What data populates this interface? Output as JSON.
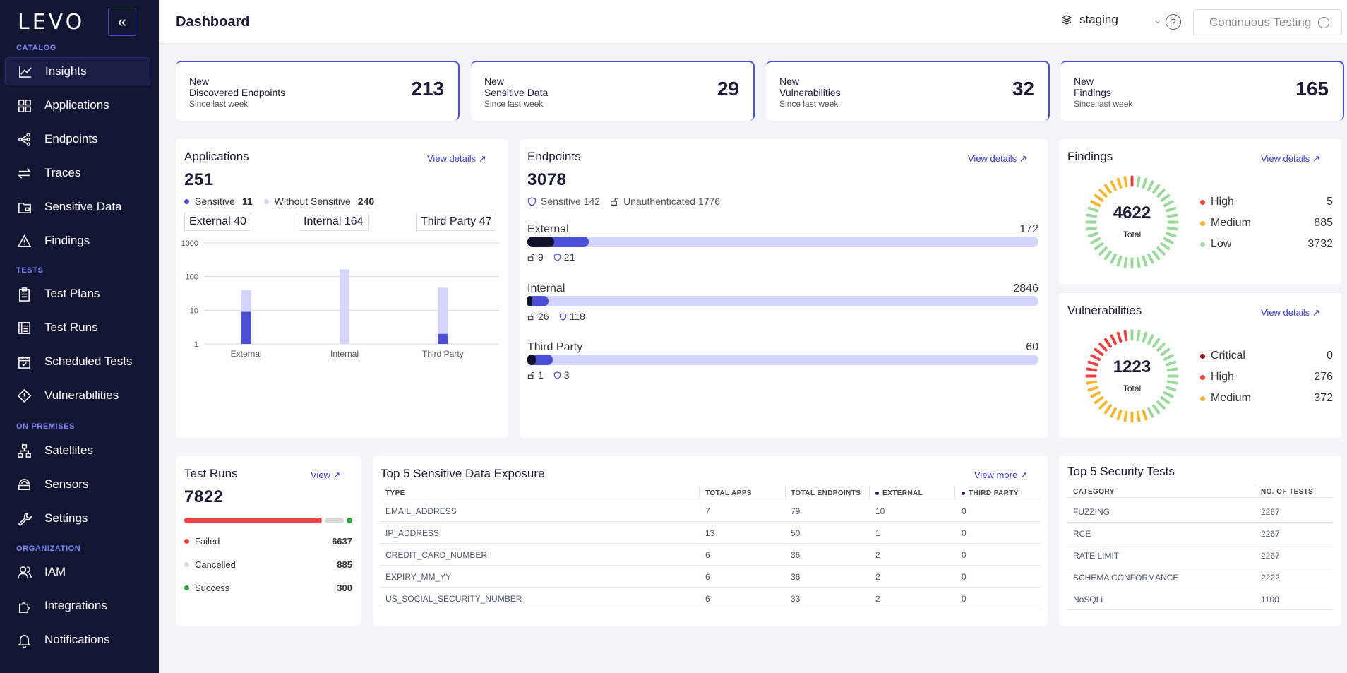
{
  "sidebar": {
    "logo": "LEVO",
    "collapse_icon": "«",
    "sections": {
      "catalog": "CATALOG",
      "tests": "TESTS",
      "on_premises": "ON PREMISES",
      "organization": "ORGANIZATION"
    },
    "items": [
      {
        "label": "Insights",
        "icon": "chart-line-icon"
      },
      {
        "label": "Applications",
        "icon": "grid-icon"
      },
      {
        "label": "Endpoints",
        "icon": "share-nodes-icon"
      },
      {
        "label": "Traces",
        "icon": "arrows-icon"
      },
      {
        "label": "Sensitive Data",
        "icon": "folder-lock-icon"
      },
      {
        "label": "Findings",
        "icon": "warning-icon"
      },
      {
        "label": "Test Plans",
        "icon": "clipboard-icon"
      },
      {
        "label": "Test Runs",
        "icon": "list-icon"
      },
      {
        "label": "Scheduled Tests",
        "icon": "calendar-icon"
      },
      {
        "label": "Vulnerabilities",
        "icon": "diamond-alert-icon"
      },
      {
        "label": "Satellites",
        "icon": "network-icon"
      },
      {
        "label": "Sensors",
        "icon": "sensor-icon"
      },
      {
        "label": "Settings",
        "icon": "wrench-icon"
      },
      {
        "label": "IAM",
        "icon": "users-icon"
      },
      {
        "label": "Integrations",
        "icon": "puzzle-icon"
      },
      {
        "label": "Notifications",
        "icon": "bell-icon"
      }
    ]
  },
  "header": {
    "title": "Dashboard",
    "environment": "staging",
    "help": "?",
    "continuous_testing": "Continuous Testing"
  },
  "stats": [
    {
      "line1": "New",
      "line2": "Discovered Endpoints",
      "line3": "Since last week",
      "value": "213"
    },
    {
      "line1": "New",
      "line2": "Sensitive Data",
      "line3": "Since last week",
      "value": "29"
    },
    {
      "line1": "New",
      "line2": "Vulnerabilities",
      "line3": "Since last week",
      "value": "32"
    },
    {
      "line1": "New",
      "line2": "Findings",
      "line3": "Since last week",
      "value": "165"
    }
  ],
  "applications": {
    "title": "Applications",
    "view": "View details ↗",
    "total": "251",
    "sensitive_label": "Sensitive",
    "sensitive_value": "11",
    "without_label": "Without Sensitive",
    "without_value": "240",
    "external": "External 40",
    "internal": "Internal 164",
    "third_party": "Third Party 47"
  },
  "chart_data": {
    "type": "bar",
    "stacked": true,
    "log_scale": true,
    "categories": [
      "External",
      "Internal",
      "Third Party"
    ],
    "series": [
      {
        "name": "Sensitive",
        "values": [
          9,
          0,
          2
        ],
        "color": "#4b4fd6"
      },
      {
        "name": "Without Sensitive",
        "values": [
          31,
          164,
          45
        ],
        "color": "#d4d5fb"
      }
    ],
    "yticks": [
      "1",
      "10",
      "100",
      "1000"
    ],
    "ylim": [
      1,
      1000
    ],
    "grid": true
  },
  "endpoints": {
    "title": "Endpoints",
    "view": "View details ↗",
    "total": "3078",
    "sensitive": "Sensitive 142",
    "unauthenticated": "Unauthenticated 1776",
    "rows": [
      {
        "label": "External",
        "total": "172",
        "unauth": "9",
        "sensitive": "21",
        "fill_fraction": 0.12,
        "dark_fraction": 0.052
      },
      {
        "label": "Internal",
        "total": "2846",
        "unauth": "26",
        "sensitive": "118",
        "fill_fraction": 0.042,
        "dark_fraction": 0.009
      },
      {
        "label": "Third Party",
        "total": "60",
        "unauth": "1",
        "sensitive": "3",
        "fill_fraction": 0.05,
        "dark_fraction": 0.017
      }
    ]
  },
  "findings": {
    "title": "Findings",
    "view": "View details ↗",
    "total": "4622",
    "total_label": "Total",
    "rows": [
      {
        "label": "High",
        "value": "5",
        "color": "#e8423f"
      },
      {
        "label": "Medium",
        "value": "885",
        "color": "#f5b731"
      },
      {
        "label": "Low",
        "value": "3732",
        "color": "#9bd89b"
      }
    ]
  },
  "vulnerabilities": {
    "title": "Vulnerabilities",
    "view": "View details ↗",
    "total": "1223",
    "total_label": "Total",
    "rows": [
      {
        "label": "Critical",
        "value": "0",
        "color": "#8b0e10"
      },
      {
        "label": "High",
        "value": "276",
        "color": "#e8423f"
      },
      {
        "label": "Medium",
        "value": "372",
        "color": "#f5b731"
      }
    ]
  },
  "test_runs": {
    "title": "Test Runs",
    "view": "View ↗",
    "total": "7822",
    "rows": [
      {
        "label": "Failed",
        "value": "6637",
        "color": "#ef4444"
      },
      {
        "label": "Cancelled",
        "value": "885",
        "color": "#d9d9d9"
      },
      {
        "label": "Success",
        "value": "300",
        "color": "#22a63a"
      }
    ]
  },
  "sensitive_exposure": {
    "title": "Top 5 Sensitive Data Exposure",
    "view": "View more ↗",
    "headers": [
      "TYPE",
      "TOTAL APPS",
      "TOTAL ENDPOINTS",
      "EXTERNAL",
      "THIRD PARTY"
    ],
    "rows": [
      [
        "EMAIL_ADDRESS",
        "7",
        "79",
        "10",
        "0"
      ],
      [
        "IP_ADDRESS",
        "13",
        "50",
        "1",
        "0"
      ],
      [
        "CREDIT_CARD_NUMBER",
        "6",
        "36",
        "2",
        "0"
      ],
      [
        "EXPIRY_MM_YY",
        "6",
        "36",
        "2",
        "0"
      ],
      [
        "US_SOCIAL_SECURITY_NUMBER",
        "6",
        "33",
        "2",
        "0"
      ]
    ]
  },
  "security_tests": {
    "title": "Top 5 Security Tests",
    "headers": [
      "CATEGORY",
      "NO. OF TESTS"
    ],
    "rows": [
      [
        "FUZZING",
        "2267"
      ],
      [
        "RCE",
        "2267"
      ],
      [
        "RATE LIMIT",
        "2267"
      ],
      [
        "SCHEMA CONFORMANCE",
        "2222"
      ],
      [
        "NoSQLi",
        "1100"
      ]
    ]
  }
}
